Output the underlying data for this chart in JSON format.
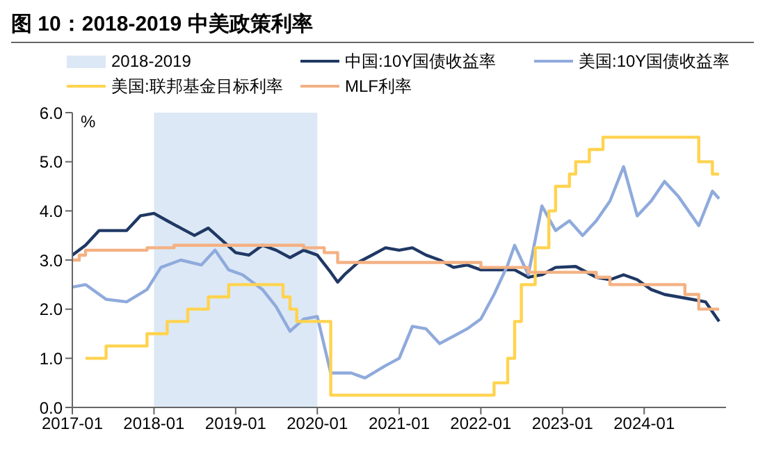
{
  "chart_data": {
    "type": "line",
    "title": "图 10：2018-2019 中美政策利率",
    "ylabel": "%",
    "legend": "top",
    "grid": false,
    "marker": "none",
    "line_style": "solid",
    "xlim": [
      "2017-01",
      "2025-01"
    ],
    "xticks": [
      "2017-01",
      "2018-01",
      "2019-01",
      "2020-01",
      "2021-01",
      "2022-01",
      "2023-01",
      "2024-01"
    ],
    "ylim": [
      0,
      6
    ],
    "yticks": [
      {
        "value": 0,
        "label": "0.0"
      },
      {
        "value": 1,
        "label": "1.0"
      },
      {
        "value": 2,
        "label": "2.0"
      },
      {
        "value": 3,
        "label": "3.0"
      },
      {
        "value": 4,
        "label": "4.0"
      },
      {
        "value": 5,
        "label": "5.0"
      },
      {
        "value": 6,
        "label": "6.0"
      }
    ],
    "bands": [
      {
        "axis": "x",
        "from": "2018-01",
        "to": "2020-01",
        "label": "2018-2019",
        "color": "#dce8f5"
      }
    ],
    "series": [
      {
        "name": "中国:10Y国债收益率",
        "color": "#1f3864",
        "x": [
          "2017-01",
          "2017-03",
          "2017-05",
          "2017-07",
          "2017-09",
          "2017-11",
          "2018-01",
          "2018-03",
          "2018-05",
          "2018-07",
          "2018-09",
          "2018-11",
          "2019-01",
          "2019-03",
          "2019-05",
          "2019-07",
          "2019-09",
          "2019-11",
          "2020-01",
          "2020-03",
          "2020-04",
          "2020-05",
          "2020-07",
          "2020-09",
          "2020-11",
          "2021-01",
          "2021-03",
          "2021-05",
          "2021-07",
          "2021-09",
          "2021-11",
          "2022-01",
          "2022-03",
          "2022-06",
          "2022-08",
          "2022-10",
          "2022-12",
          "2023-03",
          "2023-06",
          "2023-08",
          "2023-10",
          "2023-12",
          "2024-02",
          "2024-04",
          "2024-06",
          "2024-08",
          "2024-10",
          "2024-12"
        ],
        "values": [
          3.1,
          3.3,
          3.6,
          3.6,
          3.6,
          3.9,
          3.95,
          3.8,
          3.65,
          3.5,
          3.65,
          3.4,
          3.15,
          3.1,
          3.3,
          3.2,
          3.05,
          3.2,
          3.1,
          2.75,
          2.55,
          2.7,
          2.95,
          3.1,
          3.25,
          3.2,
          3.25,
          3.1,
          3.0,
          2.85,
          2.9,
          2.8,
          2.8,
          2.8,
          2.65,
          2.7,
          2.85,
          2.87,
          2.65,
          2.6,
          2.7,
          2.6,
          2.4,
          2.3,
          2.25,
          2.2,
          2.15,
          1.75
        ]
      },
      {
        "name": "美国:10Y国债收益率",
        "color": "#8faadc",
        "x": [
          "2017-01",
          "2017-03",
          "2017-06",
          "2017-09",
          "2017-12",
          "2018-02",
          "2018-05",
          "2018-08",
          "2018-10",
          "2018-12",
          "2019-02",
          "2019-05",
          "2019-07",
          "2019-09",
          "2019-11",
          "2020-01",
          "2020-03",
          "2020-06",
          "2020-08",
          "2020-11",
          "2021-01",
          "2021-03",
          "2021-05",
          "2021-07",
          "2021-09",
          "2021-11",
          "2022-01",
          "2022-03",
          "2022-05",
          "2022-06",
          "2022-08",
          "2022-10",
          "2022-12",
          "2023-02",
          "2023-04",
          "2023-06",
          "2023-08",
          "2023-10",
          "2023-12",
          "2024-02",
          "2024-04",
          "2024-06",
          "2024-09",
          "2024-11",
          "2024-12"
        ],
        "values": [
          2.45,
          2.5,
          2.2,
          2.15,
          2.4,
          2.85,
          3.0,
          2.9,
          3.2,
          2.8,
          2.7,
          2.4,
          2.05,
          1.55,
          1.8,
          1.85,
          0.7,
          0.7,
          0.6,
          0.85,
          1.0,
          1.65,
          1.6,
          1.3,
          1.45,
          1.6,
          1.8,
          2.3,
          2.9,
          3.3,
          2.7,
          4.1,
          3.6,
          3.8,
          3.5,
          3.8,
          4.2,
          4.9,
          3.9,
          4.2,
          4.6,
          4.3,
          3.7,
          4.4,
          4.25
        ]
      },
      {
        "name": "美国:联邦基金目标利率",
        "type": "step",
        "color": "#ffd34f",
        "x": [
          "2017-03",
          "2017-06",
          "2017-12",
          "2018-03",
          "2018-06",
          "2018-09",
          "2018-12",
          "2019-08",
          "2019-09",
          "2019-10",
          "2020-03",
          "2022-03",
          "2022-05",
          "2022-06",
          "2022-07",
          "2022-09",
          "2022-11",
          "2022-12",
          "2023-02",
          "2023-03",
          "2023-05",
          "2023-07",
          "2024-09",
          "2024-11",
          "2024-12"
        ],
        "values": [
          1.0,
          1.25,
          1.5,
          1.75,
          2.0,
          2.25,
          2.5,
          2.25,
          2.0,
          1.75,
          0.25,
          0.5,
          1.0,
          1.75,
          2.5,
          3.25,
          4.0,
          4.5,
          4.75,
          5.0,
          5.25,
          5.5,
          5.0,
          4.75,
          4.75
        ]
      },
      {
        "name": "MLF利率",
        "type": "step",
        "color": "#f4b183",
        "x": [
          "2017-01",
          "2017-02",
          "2017-03",
          "2017-12",
          "2018-04",
          "2019-11",
          "2020-02",
          "2020-04",
          "2022-01",
          "2022-08",
          "2023-06",
          "2023-08",
          "2024-07",
          "2024-09",
          "2024-12"
        ],
        "values": [
          3.0,
          3.1,
          3.2,
          3.25,
          3.3,
          3.25,
          3.15,
          2.95,
          2.85,
          2.75,
          2.65,
          2.5,
          2.3,
          2.0,
          2.0
        ]
      }
    ]
  }
}
